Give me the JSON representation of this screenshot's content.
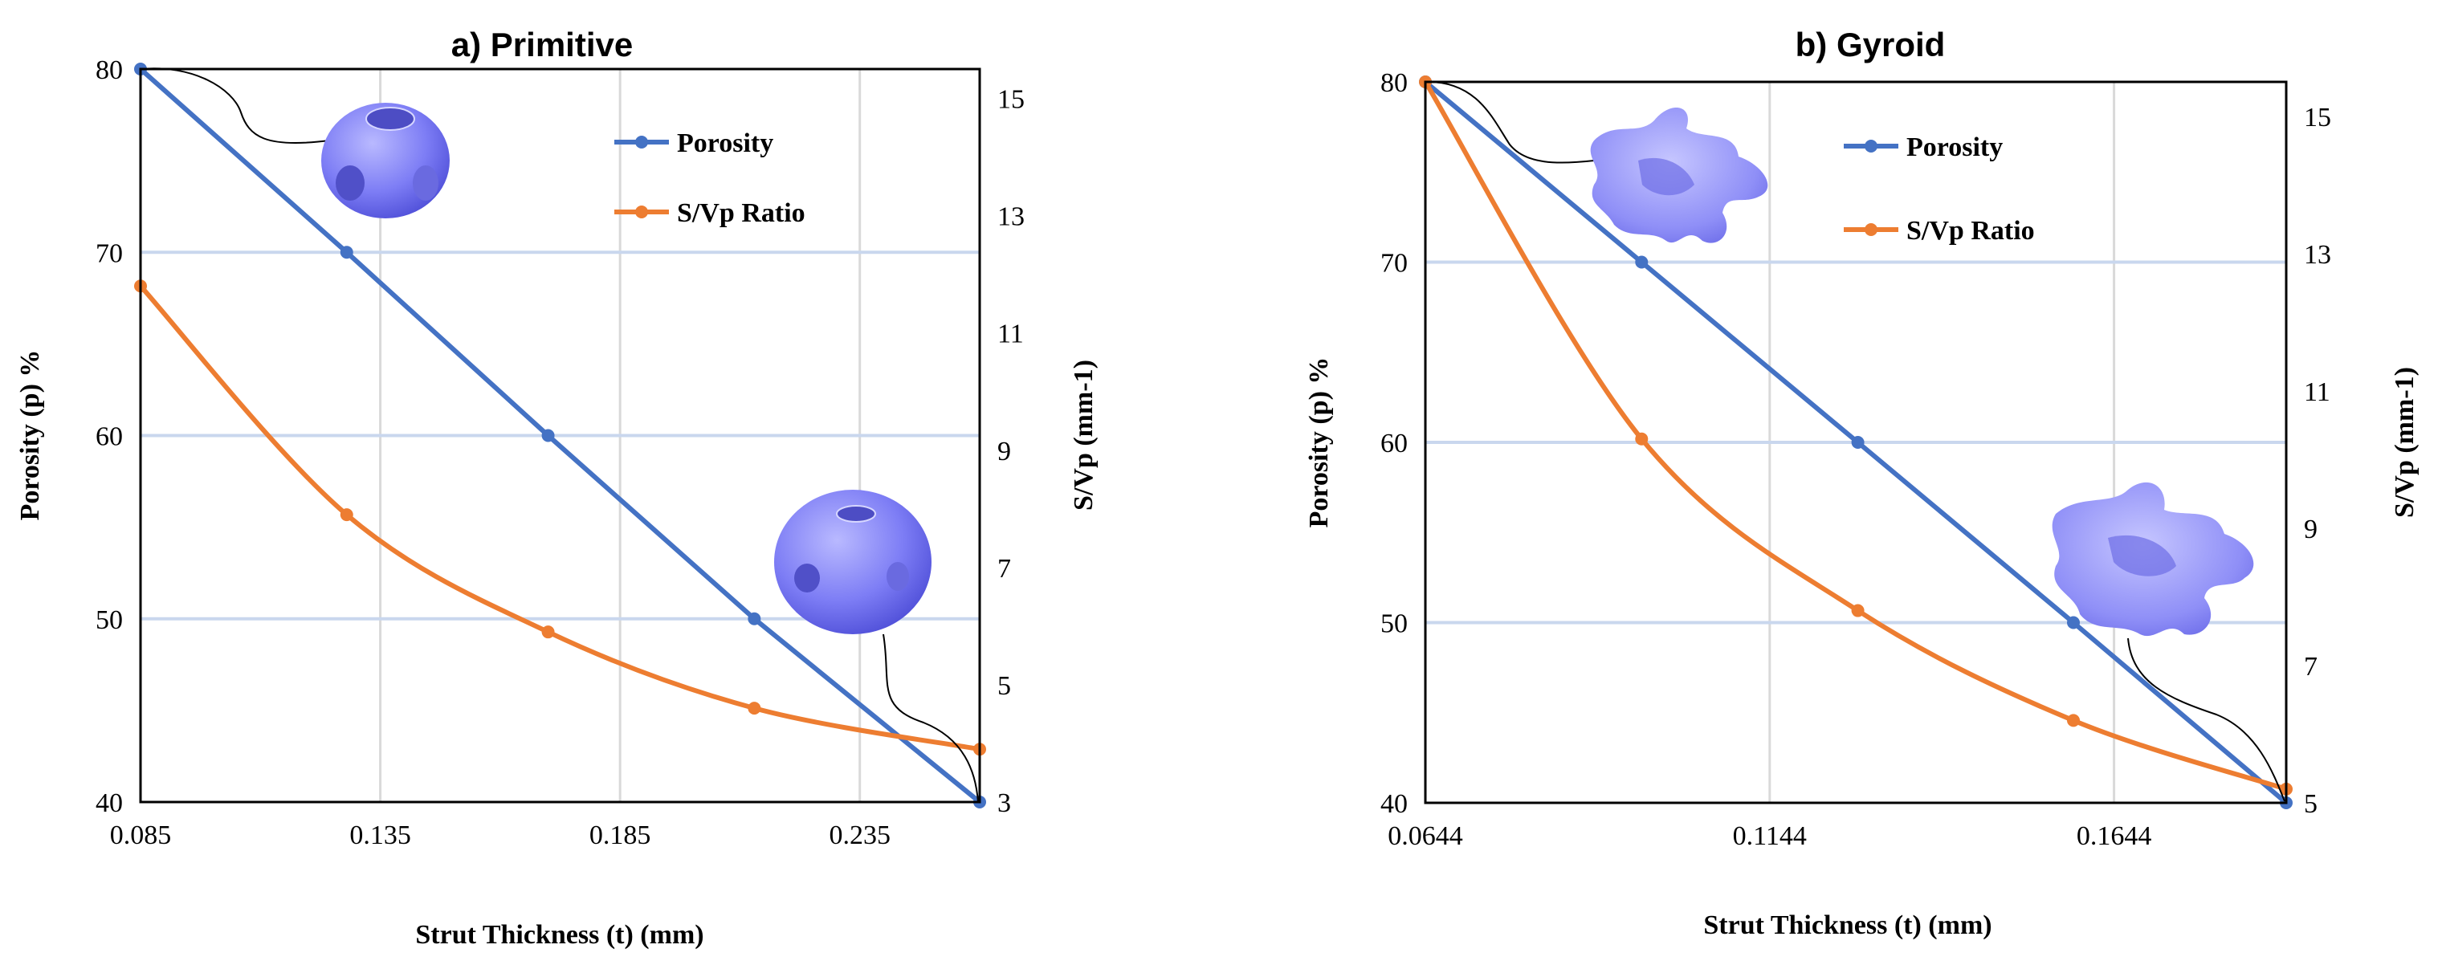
{
  "chart_data": [
    {
      "type": "line",
      "title": "a) Primitive",
      "xlabel": "Strut Thickness (t) (mm)",
      "ylabel": "Porosity (p) %",
      "y2label": "S/Vp (mm-1)",
      "xlim": [
        0.085,
        0.26
      ],
      "ylim": [
        40,
        80
      ],
      "y2lim": [
        3,
        15.5
      ],
      "xticks": [
        "0.085",
        "0.135",
        "0.185",
        "0.235"
      ],
      "xtick_values": [
        0.085,
        0.135,
        0.185,
        0.235
      ],
      "yticks": [
        "40",
        "50",
        "60",
        "70",
        "80"
      ],
      "ytick_values": [
        40,
        50,
        60,
        70,
        80
      ],
      "y2ticks": [
        "3",
        "5",
        "7",
        "9",
        "11",
        "13",
        "15"
      ],
      "y2tick_values": [
        3,
        5,
        7,
        9,
        11,
        13,
        15
      ],
      "grid": true,
      "legend_position": "top-right",
      "series": [
        {
          "name": "Porosity",
          "axis": "left",
          "color": "#4472C4",
          "x": [
            0.085,
            0.128,
            0.17,
            0.213,
            0.26
          ],
          "values": [
            80,
            70,
            60,
            50,
            40
          ]
        },
        {
          "name": "S/Vp Ratio",
          "axis": "right",
          "color": "#ED7D31",
          "x": [
            0.085,
            0.128,
            0.17,
            0.213,
            0.26
          ],
          "values": [
            11.8,
            7.9,
            5.9,
            4.6,
            3.9
          ]
        }
      ]
    },
    {
      "type": "line",
      "title": "b) Gyroid",
      "xlabel": "Strut Thickness (t) (mm)",
      "ylabel": "Porosity (p) %",
      "y2label": "S/Vp (mm-1)",
      "xlim": [
        0.0644,
        0.1894
      ],
      "ylim": [
        40,
        80
      ],
      "y2lim": [
        5,
        15.5
      ],
      "xticks": [
        "0.0644",
        "0.1144",
        "0.1644"
      ],
      "xtick_values": [
        0.0644,
        0.1144,
        0.1644
      ],
      "yticks": [
        "40",
        "50",
        "60",
        "70",
        "80"
      ],
      "ytick_values": [
        40,
        50,
        60,
        70,
        80
      ],
      "y2ticks": [
        "5",
        "7",
        "9",
        "11",
        "13",
        "15"
      ],
      "y2tick_values": [
        5,
        7,
        9,
        11,
        13,
        15
      ],
      "grid": true,
      "legend_position": "top-right",
      "series": [
        {
          "name": "Porosity",
          "axis": "left",
          "color": "#4472C4",
          "x": [
            0.0644,
            0.0958,
            0.1272,
            0.1585,
            0.1894
          ],
          "values": [
            80,
            70,
            60,
            50,
            40
          ]
        },
        {
          "name": "S/Vp Ratio",
          "axis": "right",
          "color": "#ED7D31",
          "x": [
            0.0644,
            0.0958,
            0.1272,
            0.1585,
            0.1894
          ],
          "values": [
            15.5,
            10.3,
            7.8,
            6.2,
            5.2
          ]
        }
      ]
    }
  ]
}
